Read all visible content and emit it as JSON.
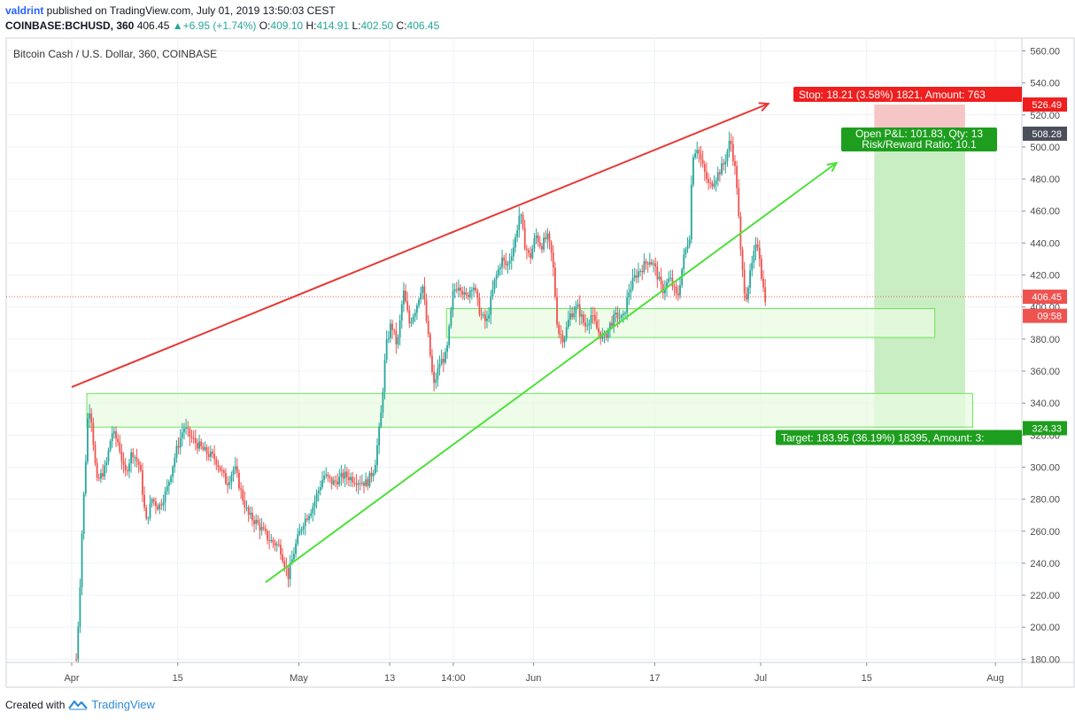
{
  "header": {
    "user": "valdrint",
    "published": " published on TradingView.com, July 01, 2019 13:50:03 CEST",
    "symbol": "COINBASE:BCHUSD, 360",
    "last": "406.45",
    "change": "+6.95 (+1.74%)",
    "o_label": "O:",
    "o": "409.10",
    "h_label": "H:",
    "h": "414.91",
    "l_label": "L:",
    "l": "402.50",
    "c_label": "C:",
    "c": "406.45"
  },
  "footer": {
    "created_with": "Created with",
    "brand": "TradingView"
  },
  "colors": {
    "up": "#26a69a",
    "down": "#ef5350",
    "resistance": "#e53935",
    "support": "#4ee03a",
    "zone_fill": "#e8fbe1",
    "zone_stroke": "#6ee35a",
    "target_fill": "#c9eec3",
    "stop_fill": "#f6c6c6",
    "grid": "#eef1f5",
    "axis_text": "#4a4a4a",
    "price_line": "#ef5350"
  },
  "chart_data": {
    "type": "candlestick",
    "title": "Bitcoin Cash / U.S. Dollar, 360, COINBASE",
    "y_ticks": [
      180,
      200,
      220,
      240,
      260,
      280,
      300,
      320,
      340,
      360,
      380,
      400,
      420,
      440,
      460,
      480,
      500,
      520,
      540,
      560
    ],
    "ylim": [
      178,
      568
    ],
    "x_range_days": [
      0,
      124
    ],
    "x_ticks": [
      {
        "label": "Apr",
        "day": 0
      },
      {
        "label": "15",
        "day": 14
      },
      {
        "label": "May",
        "day": 30
      },
      {
        "label": "13",
        "day": 42
      },
      {
        "label": "14:00",
        "day": 50.4
      },
      {
        "label": "Jun",
        "day": 61
      },
      {
        "label": "17",
        "day": 77
      },
      {
        "label": "Jul",
        "day": 91
      },
      {
        "label": "15",
        "day": 105
      },
      {
        "label": "Aug",
        "day": 122
      }
    ],
    "grid": true,
    "price_path": [
      [
        0.6,
        180
      ],
      [
        1.0,
        215
      ],
      [
        1.4,
        265
      ],
      [
        1.8,
        300
      ],
      [
        2.2,
        340
      ],
      [
        2.6,
        330
      ],
      [
        3.3,
        290
      ],
      [
        4.5,
        300
      ],
      [
        5.3,
        322
      ],
      [
        6.2,
        315
      ],
      [
        7.0,
        295
      ],
      [
        8.0,
        310
      ],
      [
        9.0,
        300
      ],
      [
        9.8,
        265
      ],
      [
        10.6,
        280
      ],
      [
        11.5,
        275
      ],
      [
        12.5,
        285
      ],
      [
        13.8,
        310
      ],
      [
        14.8,
        325
      ],
      [
        15.8,
        318
      ],
      [
        17.5,
        310
      ],
      [
        19.0,
        305
      ],
      [
        20.5,
        290
      ],
      [
        21.5,
        300
      ],
      [
        22.5,
        282
      ],
      [
        23.3,
        270
      ],
      [
        24.5,
        265
      ],
      [
        26.0,
        255
      ],
      [
        27.5,
        250
      ],
      [
        28.6,
        232
      ],
      [
        29.5,
        250
      ],
      [
        30.5,
        265
      ],
      [
        31.8,
        275
      ],
      [
        33.3,
        295
      ],
      [
        34.5,
        290
      ],
      [
        36.0,
        295
      ],
      [
        37.5,
        292
      ],
      [
        39.0,
        290
      ],
      [
        40.0,
        300
      ],
      [
        40.8,
        330
      ],
      [
        41.5,
        375
      ],
      [
        42.2,
        390
      ],
      [
        43.0,
        375
      ],
      [
        43.8,
        410
      ],
      [
        44.6,
        390
      ],
      [
        45.5,
        400
      ],
      [
        46.3,
        415
      ],
      [
        47.0,
        385
      ],
      [
        47.8,
        350
      ],
      [
        48.6,
        365
      ],
      [
        49.5,
        370
      ],
      [
        50.4,
        410
      ],
      [
        51.2,
        415
      ],
      [
        52.0,
        405
      ],
      [
        53.0,
        415
      ],
      [
        54.0,
        395
      ],
      [
        54.8,
        390
      ],
      [
        55.8,
        415
      ],
      [
        56.8,
        430
      ],
      [
        57.5,
        425
      ],
      [
        58.5,
        440
      ],
      [
        59.2,
        460
      ],
      [
        59.8,
        440
      ],
      [
        60.5,
        430
      ],
      [
        61.3,
        445
      ],
      [
        62.0,
        438
      ],
      [
        62.8,
        444
      ],
      [
        63.5,
        430
      ],
      [
        64.2,
        385
      ],
      [
        65.0,
        380
      ],
      [
        65.8,
        395
      ],
      [
        66.8,
        400
      ],
      [
        67.8,
        388
      ],
      [
        68.6,
        395
      ],
      [
        69.5,
        385
      ],
      [
        70.3,
        380
      ],
      [
        71.2,
        390
      ],
      [
        72.0,
        395
      ],
      [
        72.8,
        392
      ],
      [
        73.6,
        410
      ],
      [
        74.5,
        420
      ],
      [
        75.4,
        425
      ],
      [
        76.3,
        430
      ],
      [
        77.0,
        425
      ],
      [
        78.0,
        410
      ],
      [
        79.0,
        418
      ],
      [
        80.0,
        405
      ],
      [
        80.8,
        430
      ],
      [
        81.6,
        445
      ],
      [
        82.0,
        495
      ],
      [
        82.6,
        500
      ],
      [
        83.3,
        488
      ],
      [
        84.2,
        475
      ],
      [
        85.2,
        482
      ],
      [
        86.2,
        490
      ],
      [
        87.0,
        505
      ],
      [
        87.8,
        480
      ],
      [
        88.4,
        430
      ],
      [
        89.0,
        405
      ],
      [
        89.6,
        420
      ],
      [
        90.2,
        435
      ],
      [
        90.7,
        440
      ],
      [
        91.2,
        415
      ],
      [
        91.6,
        406
      ]
    ],
    "resistance_line": {
      "from": [
        0.0,
        350
      ],
      "to": [
        92.0,
        527
      ]
    },
    "support_line": {
      "from": [
        25.6,
        228
      ],
      "to": [
        101.0,
        490
      ]
    },
    "zones": [
      {
        "from_day": 2.0,
        "to_day": 119.0,
        "low": 325,
        "high": 346
      },
      {
        "from_day": 49.5,
        "to_day": 114.0,
        "low": 381,
        "high": 399
      }
    ],
    "position": {
      "from_day": 106.0,
      "to_day": 118.0,
      "entry": 508.28,
      "stop": 526.49,
      "target": 324.33,
      "stop_label": "Stop: 18.21 (3.58%) 1821, Amount: 763",
      "target_label": "Target: 183.95 (36.19%) 18395, Amount: 3:",
      "pnl_label": "Open P&L: 101.83, Qty: 13",
      "rr_label": "Risk/Reward Ratio: 10.1"
    },
    "price_badges": [
      {
        "text": "526.49",
        "value": 526.49,
        "color": "#ef1f1f"
      },
      {
        "text": "508.28",
        "value": 508.28,
        "color": "#4a4f5a"
      },
      {
        "text": "406.45",
        "value": 406.45,
        "color": "#ef5350"
      },
      {
        "text": "09:58",
        "value": 394.5,
        "color": "#ef5350"
      },
      {
        "text": "324.33",
        "value": 324.33,
        "color": "#1e9e1e"
      }
    ],
    "last_price": 406.45
  }
}
